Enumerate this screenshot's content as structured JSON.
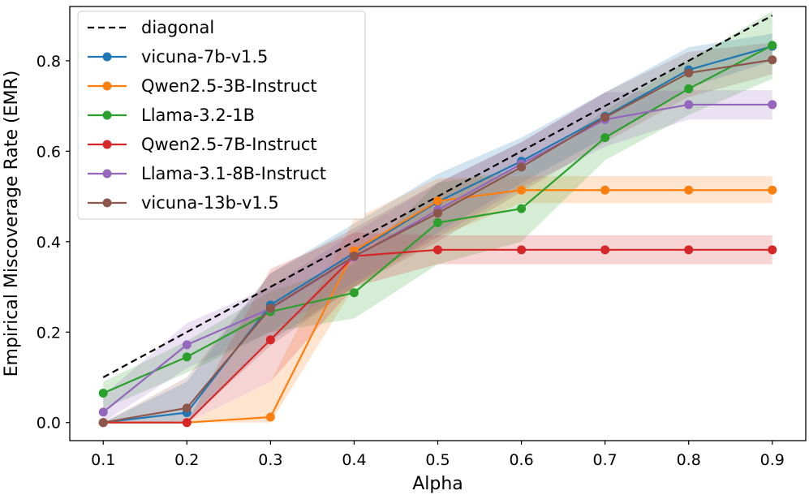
{
  "chart_data": {
    "type": "line",
    "xlabel": "Alpha",
    "ylabel": "Empirical Miscoverage Rate (EMR)",
    "xlim": [
      0.06,
      0.94
    ],
    "ylim": [
      -0.04,
      0.92
    ],
    "xticks": [
      "0.1",
      "0.2",
      "0.3",
      "0.4",
      "0.5",
      "0.6",
      "0.7",
      "0.8",
      "0.9"
    ],
    "yticks": [
      "0.0",
      "0.2",
      "0.4",
      "0.6",
      "0.8"
    ],
    "grid": false,
    "legend_position": "top-left",
    "x": [
      0.1,
      0.2,
      0.3,
      0.4,
      0.5,
      0.6,
      0.7,
      0.8,
      0.9
    ],
    "diagonal": {
      "name": "diagonal",
      "color": "#000000",
      "style": "dashed",
      "x": [
        0.1,
        0.9
      ],
      "y": [
        0.1,
        0.9
      ]
    },
    "series": [
      {
        "name": "vicuna-7b-v1.5",
        "color": "#1f77b4",
        "values": [
          0.0,
          0.022,
          0.26,
          0.375,
          0.488,
          0.578,
          0.677,
          0.78,
          0.832
        ],
        "lower": [
          0.0,
          0.0,
          0.18,
          0.3,
          0.42,
          0.53,
          0.63,
          0.74,
          0.8
        ],
        "upper": [
          0.0,
          0.09,
          0.33,
          0.44,
          0.55,
          0.63,
          0.73,
          0.83,
          0.86
        ]
      },
      {
        "name": "Qwen2.5-3B-Instruct",
        "color": "#ff7f0e",
        "values": [
          0.0,
          0.0,
          0.012,
          0.38,
          0.49,
          0.514,
          0.514,
          0.514,
          0.514
        ],
        "lower": [
          0.0,
          0.0,
          0.0,
          0.3,
          0.41,
          0.485,
          0.485,
          0.485,
          0.485
        ],
        "upper": [
          0.0,
          0.0,
          0.09,
          0.45,
          0.54,
          0.545,
          0.545,
          0.545,
          0.545
        ]
      },
      {
        "name": "Llama-3.2-1B",
        "color": "#2ca02c",
        "values": [
          0.065,
          0.145,
          0.245,
          0.287,
          0.442,
          0.473,
          0.63,
          0.738,
          0.834
        ],
        "lower": [
          0.03,
          0.11,
          0.2,
          0.23,
          0.35,
          0.4,
          0.58,
          0.68,
          0.76
        ],
        "upper": [
          0.09,
          0.18,
          0.29,
          0.35,
          0.53,
          0.56,
          0.69,
          0.8,
          0.91
        ]
      },
      {
        "name": "Qwen2.5-7B-Instruct",
        "color": "#d62728",
        "values": [
          0.0,
          0.0,
          0.183,
          0.368,
          0.382,
          0.382,
          0.382,
          0.382,
          0.382
        ],
        "lower": [
          0.0,
          0.0,
          0.09,
          0.3,
          0.35,
          0.35,
          0.35,
          0.35,
          0.35
        ],
        "upper": [
          0.0,
          0.0,
          0.34,
          0.42,
          0.414,
          0.414,
          0.414,
          0.414,
          0.414
        ]
      },
      {
        "name": "Llama-3.1-8B-Instruct",
        "color": "#9467bd",
        "values": [
          0.023,
          0.172,
          0.252,
          0.366,
          0.47,
          0.572,
          0.67,
          0.703,
          0.703
        ],
        "lower": [
          0.0,
          0.12,
          0.2,
          0.31,
          0.41,
          0.52,
          0.61,
          0.67,
          0.67
        ],
        "upper": [
          0.06,
          0.22,
          0.3,
          0.42,
          0.53,
          0.62,
          0.73,
          0.735,
          0.735
        ]
      },
      {
        "name": "vicuna-13b-v1.5",
        "color": "#8c564b",
        "values": [
          0.0,
          0.032,
          0.253,
          0.368,
          0.463,
          0.565,
          0.675,
          0.773,
          0.802
        ],
        "lower": [
          0.0,
          0.0,
          0.17,
          0.3,
          0.4,
          0.51,
          0.62,
          0.72,
          0.77
        ],
        "upper": [
          0.0,
          0.1,
          0.33,
          0.43,
          0.53,
          0.62,
          0.73,
          0.82,
          0.84
        ]
      }
    ]
  }
}
